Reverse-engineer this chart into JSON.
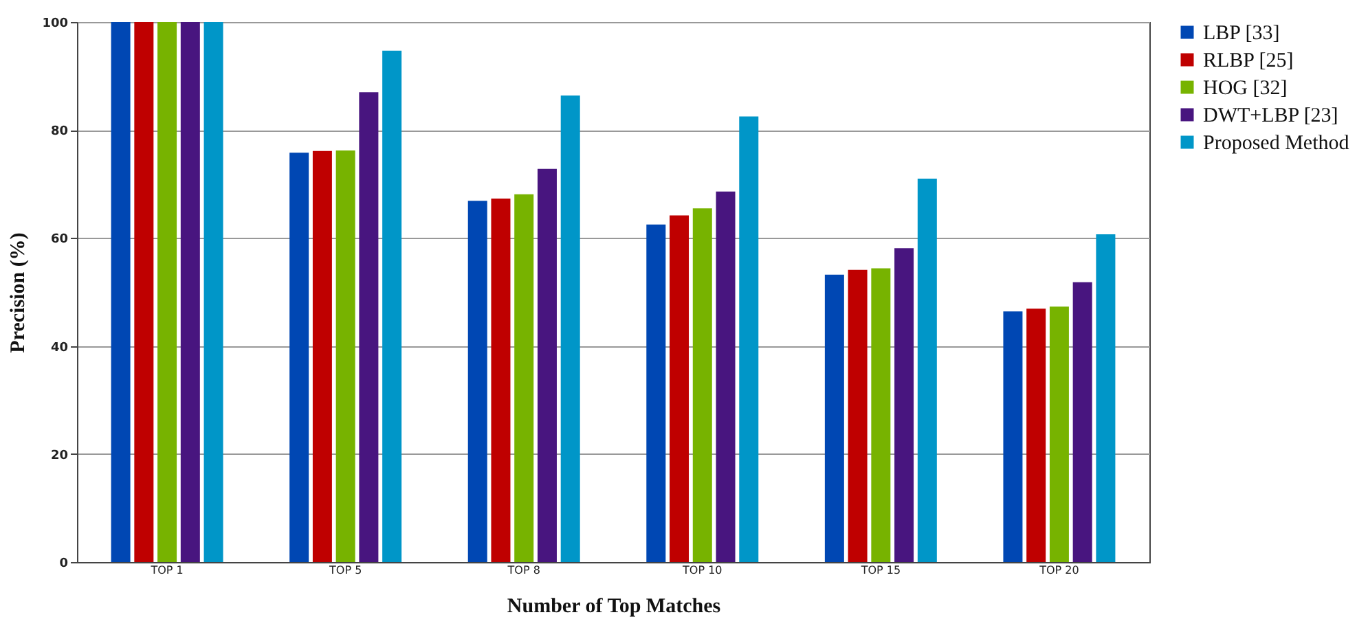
{
  "chart_data": {
    "type": "bar",
    "xlabel": "Number of Top Matches",
    "ylabel": "Precision (%)",
    "categories": [
      "TOP 1",
      "TOP 5",
      "TOP 8",
      "TOP 10",
      "TOP 15",
      "TOP 20"
    ],
    "series": [
      {
        "name": "LBP [33]",
        "color": "#0047b3",
        "values": [
          100,
          75.8,
          66.9,
          62.5,
          53.2,
          46.4
        ]
      },
      {
        "name": "RLBP [25]",
        "color": "#bf0000",
        "values": [
          100,
          76.1,
          67.3,
          64.2,
          54.1,
          46.9
        ]
      },
      {
        "name": "HOG [32]",
        "color": "#77b300",
        "values": [
          100,
          76.2,
          68.1,
          65.5,
          54.4,
          47.3
        ]
      },
      {
        "name": "DWT+LBP [23]",
        "color": "#48157f",
        "values": [
          100,
          87.0,
          72.8,
          68.6,
          58.1,
          51.8
        ]
      },
      {
        "name": "Proposed Method",
        "color": "#0096c8",
        "values": [
          100,
          94.7,
          86.4,
          82.5,
          71.0,
          60.7
        ]
      }
    ],
    "ylim": [
      0,
      100
    ],
    "yticks": [
      0,
      20,
      40,
      60,
      80,
      100
    ],
    "grid": "y",
    "legend": "right"
  }
}
